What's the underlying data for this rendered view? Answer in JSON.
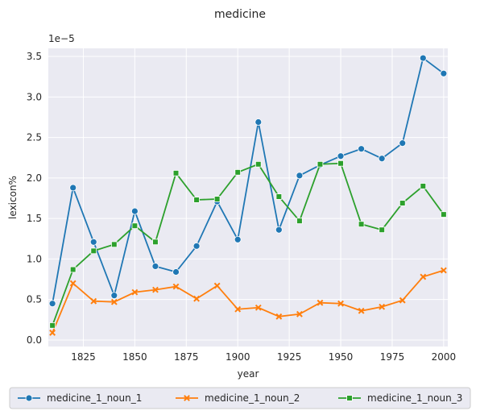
{
  "chart_data": {
    "type": "line",
    "title": "medicine",
    "xlabel": "year",
    "ylabel": "lexicon%",
    "y_scale_label": "1e−5",
    "xlim": [
      1808,
      2002
    ],
    "ylim": [
      -0.08,
      3.6
    ],
    "x_ticks": [
      1825,
      1850,
      1875,
      1900,
      1925,
      1950,
      1975,
      2000
    ],
    "y_ticks": [
      0.0,
      0.5,
      1.0,
      1.5,
      2.0,
      2.5,
      3.0,
      3.5
    ],
    "y_tick_labels": [
      "0.0",
      "0.5",
      "1.0",
      "1.5",
      "2.0",
      "2.5",
      "3.0",
      "3.5"
    ],
    "grid": true,
    "background": "#eaeaf2",
    "legend_position": "bottom",
    "x": [
      1810,
      1820,
      1830,
      1840,
      1850,
      1860,
      1870,
      1880,
      1890,
      1900,
      1910,
      1920,
      1930,
      1940,
      1950,
      1960,
      1970,
      1980,
      1990,
      2000
    ],
    "series": [
      {
        "name": "medicine_1_noun_1",
        "color": "#1f77b4",
        "marker": "circle",
        "values": [
          0.45,
          1.88,
          1.21,
          0.55,
          1.59,
          0.91,
          0.84,
          1.16,
          1.71,
          1.24,
          2.69,
          1.36,
          2.03,
          2.16,
          2.27,
          2.36,
          2.24,
          2.43,
          3.48,
          3.29
        ]
      },
      {
        "name": "medicine_1_noun_2",
        "color": "#ff7f0e",
        "marker": "x",
        "values": [
          0.09,
          0.7,
          0.48,
          0.47,
          0.59,
          0.62,
          0.66,
          0.51,
          0.67,
          0.38,
          0.4,
          0.29,
          0.32,
          0.46,
          0.45,
          0.36,
          0.41,
          0.49,
          0.78,
          0.86
        ]
      },
      {
        "name": "medicine_1_noun_3",
        "color": "#2ca02c",
        "marker": "square",
        "values": [
          0.18,
          0.87,
          1.1,
          1.18,
          1.41,
          1.21,
          2.06,
          1.73,
          1.74,
          2.07,
          2.17,
          1.77,
          1.47,
          2.17,
          2.18,
          1.43,
          1.36,
          1.69,
          1.9,
          1.55
        ]
      }
    ]
  }
}
